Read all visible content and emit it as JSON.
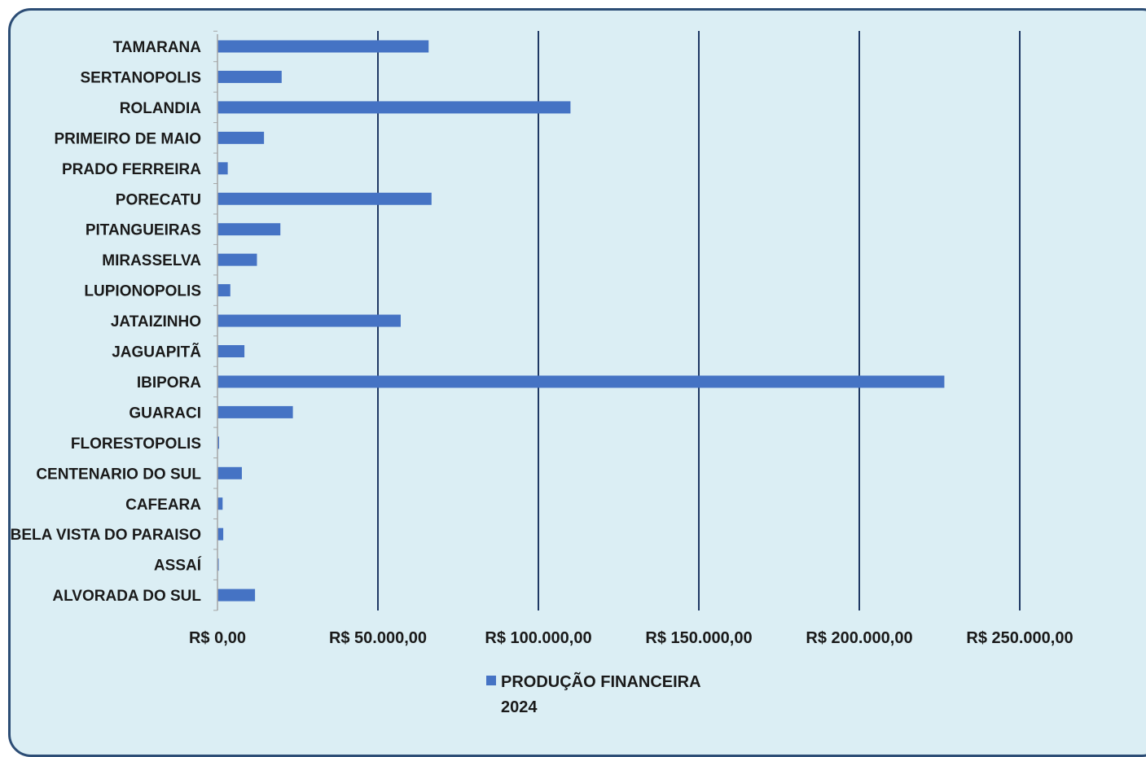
{
  "chart_data": {
    "type": "bar",
    "orientation": "horizontal",
    "categories": [
      "TAMARANA",
      "SERTANOPOLIS",
      "ROLANDIA",
      "PRIMEIRO DE MAIO",
      "PRADO FERREIRA",
      "PORECATU",
      "PITANGUEIRAS",
      "MIRASSELVA",
      "LUPIONOPOLIS",
      "JATAIZINHO",
      "JAGUAPITÃ",
      "IBIPORA",
      "GUARACI",
      "FLORESTOPOLIS",
      "CENTENARIO DO SUL",
      "CAFEARA",
      "BELA VISTA DO PARAISO",
      "ASSAÍ",
      "ALVORADA DO SUL"
    ],
    "series": [
      {
        "name": "PRODUÇÃO FINANCEIRA 2024",
        "name_lines": [
          "PRODUÇÃO FINANCEIRA",
          "2024"
        ],
        "color": "#4573c4",
        "values": [
          65800,
          20000,
          110000,
          14500,
          3200,
          66700,
          19600,
          12300,
          4000,
          57100,
          8400,
          226500,
          23500,
          500,
          7600,
          1600,
          1800,
          300,
          11700
        ]
      }
    ],
    "x_ticks": [
      0,
      50000,
      100000,
      150000,
      200000,
      250000
    ],
    "x_tick_labels": [
      "R$ 0,00",
      "R$ 50.000,00",
      "R$ 100.000,00",
      "R$ 150.000,00",
      "R$ 200.000,00",
      "R$ 250.000,00"
    ],
    "xlim": [
      0,
      250000
    ],
    "grid": "vertical",
    "legend_position": "bottom",
    "title": "",
    "xlabel": "",
    "ylabel": ""
  },
  "colors": {
    "background": "#dbeef4",
    "frame": "#2c4d75",
    "gridline": "#1f3864",
    "bar": "#4573c4"
  }
}
